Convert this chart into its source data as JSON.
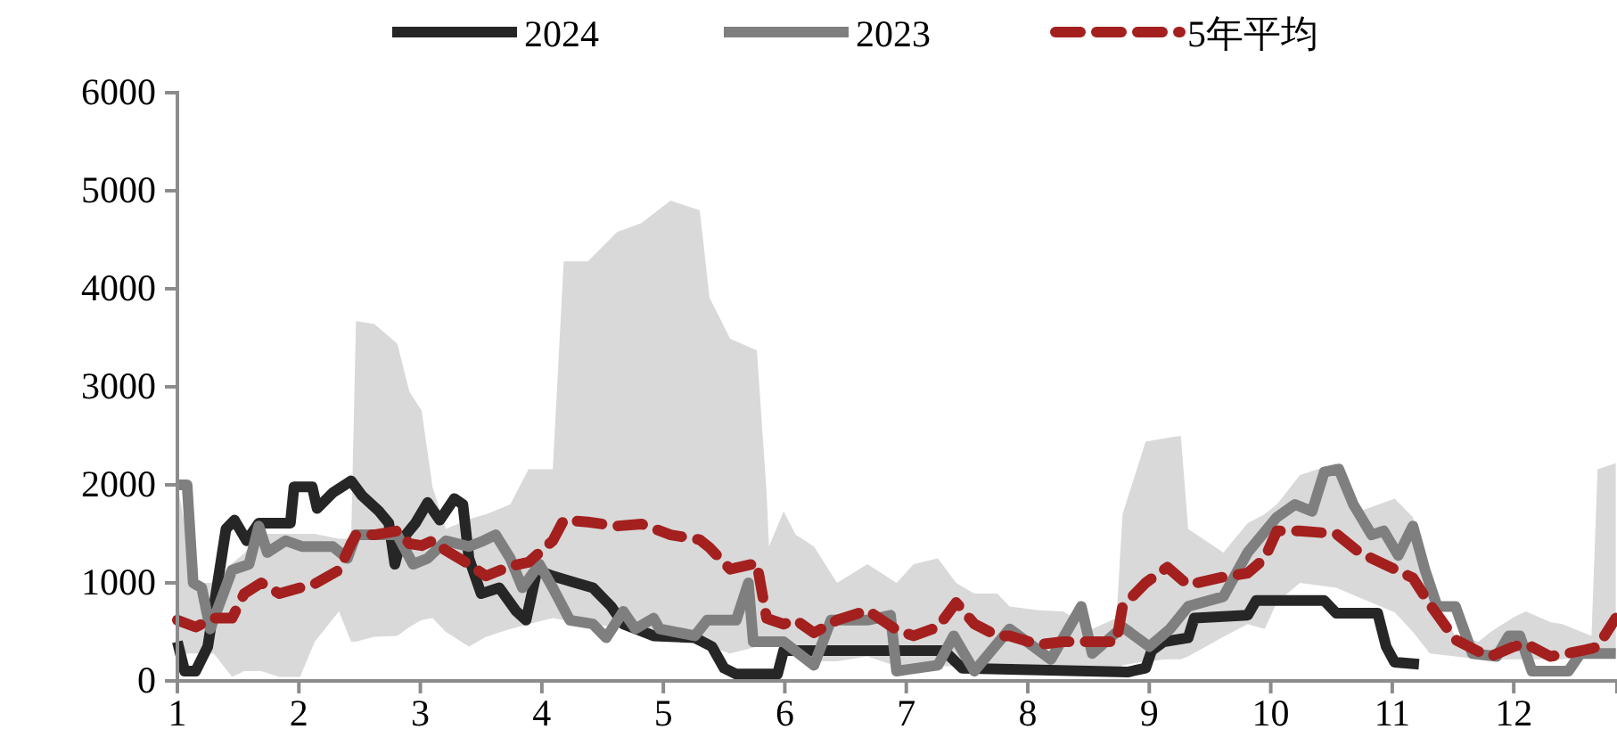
{
  "chart_data": {
    "type": "line",
    "xlim": [
      1,
      12.85
    ],
    "xticks": [
      1,
      2,
      3,
      4,
      5,
      6,
      7,
      8,
      9,
      10,
      11,
      12
    ],
    "ylim": [
      0,
      6000
    ],
    "yticks": [
      0,
      1000,
      2000,
      3000,
      4000,
      5000,
      6000
    ],
    "grid": false,
    "legend": "top",
    "series": [
      {
        "name": "5年平均",
        "color": "#a3201f",
        "line_style": "dashed",
        "x": [
          1.0,
          1.15,
          1.3,
          1.45,
          1.55,
          1.69,
          1.84,
          2.01,
          2.13,
          2.33,
          2.43,
          2.47,
          2.62,
          2.81,
          2.91,
          3.01,
          3.1,
          3.21,
          3.4,
          3.54,
          3.74,
          3.89,
          4.09,
          4.18,
          4.38,
          4.62,
          4.82,
          5.06,
          5.3,
          5.38,
          5.55,
          5.77,
          5.85,
          5.87,
          5.99,
          6.09,
          6.24,
          6.43,
          6.68,
          6.92,
          7.06,
          7.26,
          7.41,
          7.56,
          7.75,
          7.85,
          8.09,
          8.29,
          8.53,
          8.73,
          8.78,
          8.97,
          9.15,
          9.26,
          9.32,
          9.61,
          9.81,
          9.95,
          10.05,
          10.24,
          10.54,
          10.73,
          11.02,
          11.17,
          11.31,
          11.52,
          11.71,
          11.81,
          12.0,
          12.1,
          12.3,
          12.4,
          12.64,
          12.69,
          12.84
        ],
        "values": [
          620,
          550,
          640,
          640,
          890,
          1000,
          890,
          950,
          990,
          1130,
          1400,
          1490,
          1490,
          1530,
          1400,
          1380,
          1430,
          1330,
          1190,
          1070,
          1170,
          1210,
          1430,
          1640,
          1620,
          1580,
          1600,
          1490,
          1440,
          1360,
          1140,
          1200,
          640,
          630,
          580,
          620,
          490,
          620,
          720,
          520,
          460,
          550,
          800,
          580,
          460,
          460,
          370,
          400,
          400,
          400,
          760,
          1000,
          1160,
          1040,
          980,
          1060,
          1100,
          1250,
          1530,
          1530,
          1500,
          1310,
          1140,
          1050,
          780,
          420,
          300,
          250,
          350,
          380,
          250,
          270,
          330,
          350,
          640
        ],
        "lower": [
          280,
          280,
          280,
          40,
          100,
          100,
          40,
          40,
          400,
          710,
          400,
          400,
          450,
          460,
          550,
          620,
          640,
          500,
          350,
          450,
          530,
          580,
          640,
          620,
          580,
          550,
          530,
          480,
          400,
          350,
          280,
          350,
          400,
          400,
          350,
          300,
          200,
          200,
          250,
          150,
          150,
          150,
          150,
          100,
          100,
          100,
          100,
          100,
          100,
          100,
          160,
          200,
          220,
          220,
          250,
          450,
          580,
          530,
          800,
          1000,
          950,
          850,
          700,
          500,
          280,
          250,
          220,
          220,
          220,
          220,
          220,
          220,
          250,
          250,
          280
        ],
        "upper": [
          2000,
          1000,
          1000,
          1200,
          1300,
          1500,
          1500,
          1500,
          1500,
          1450,
          1450,
          3670,
          3640,
          3440,
          2950,
          2760,
          1980,
          1550,
          1650,
          1700,
          1800,
          2160,
          2160,
          4280,
          4280,
          4580,
          4670,
          4900,
          4800,
          3910,
          3490,
          3370,
          1920,
          1370,
          1730,
          1490,
          1370,
          1000,
          1190,
          1000,
          1190,
          1250,
          1000,
          890,
          890,
          760,
          720,
          710,
          530,
          640,
          1700,
          2440,
          2480,
          2500,
          1550,
          1310,
          1610,
          1700,
          1800,
          2100,
          2220,
          1730,
          1860,
          1670,
          890,
          460,
          400,
          500,
          650,
          710,
          600,
          580,
          460,
          2160,
          2220
        ]
      },
      {
        "name": "2023",
        "color": "#7f7f7f",
        "x": [
          1.0,
          1.08,
          1.13,
          1.2,
          1.27,
          1.45,
          1.59,
          1.67,
          1.74,
          1.89,
          2.03,
          2.28,
          2.4,
          2.47,
          2.81,
          2.94,
          3.06,
          3.21,
          3.4,
          3.52,
          3.62,
          3.74,
          3.84,
          3.98,
          4.09,
          4.23,
          4.42,
          4.53,
          4.67,
          4.77,
          4.92,
          4.97,
          5.26,
          5.36,
          5.6,
          5.7,
          5.74,
          5.99,
          6.24,
          6.38,
          6.68,
          6.87,
          6.92,
          7.26,
          7.39,
          7.56,
          7.85,
          8.19,
          8.44,
          8.53,
          8.78,
          9.0,
          9.17,
          9.32,
          9.61,
          9.81,
          10.05,
          10.2,
          10.34,
          10.44,
          10.56,
          10.68,
          10.83,
          10.93,
          11.05,
          11.17,
          11.27,
          11.37,
          11.52,
          11.66,
          11.86,
          11.96,
          12.05,
          12.15,
          12.45,
          12.55,
          12.84
        ],
        "values": [
          2000,
          2000,
          1000,
          950,
          530,
          1130,
          1190,
          1580,
          1310,
          1430,
          1370,
          1370,
          1250,
          1490,
          1490,
          1190,
          1250,
          1430,
          1370,
          1430,
          1490,
          1250,
          950,
          1190,
          950,
          620,
          580,
          440,
          710,
          530,
          640,
          530,
          460,
          620,
          620,
          1000,
          400,
          400,
          160,
          620,
          620,
          670,
          100,
          160,
          460,
          100,
          530,
          220,
          760,
          280,
          550,
          350,
          530,
          760,
          860,
          1310,
          1670,
          1800,
          1730,
          2130,
          2160,
          1800,
          1490,
          1530,
          1280,
          1580,
          1130,
          760,
          760,
          280,
          250,
          460,
          460,
          100,
          100,
          280,
          280
        ]
      },
      {
        "name": "2024",
        "color": "#262626",
        "x": [
          1.0,
          1.06,
          1.15,
          1.25,
          1.4,
          1.47,
          1.57,
          1.67,
          1.93,
          1.96,
          2.11,
          2.15,
          2.28,
          2.43,
          2.52,
          2.66,
          2.74,
          2.79,
          2.84,
          2.96,
          3.06,
          3.16,
          3.28,
          3.35,
          3.4,
          3.5,
          3.65,
          3.79,
          3.87,
          3.96,
          4.09,
          4.28,
          4.42,
          4.57,
          4.67,
          4.92,
          5.26,
          5.4,
          5.5,
          5.6,
          5.94,
          5.99,
          7.31,
          7.46,
          8.82,
          8.97,
          9.02,
          9.12,
          9.32,
          9.37,
          9.81,
          9.88,
          10.44,
          10.54,
          10.88,
          10.95,
          11.02,
          11.22
        ],
        "values": [
          400,
          100,
          100,
          350,
          1550,
          1640,
          1430,
          1610,
          1610,
          1980,
          1980,
          1760,
          1920,
          2040,
          1890,
          1730,
          1610,
          1190,
          1430,
          1610,
          1820,
          1640,
          1860,
          1800,
          1250,
          890,
          950,
          710,
          620,
          1130,
          1070,
          1000,
          950,
          760,
          580,
          460,
          440,
          350,
          130,
          70,
          70,
          310,
          310,
          130,
          90,
          130,
          310,
          400,
          440,
          640,
          670,
          820,
          820,
          690,
          690,
          350,
          190,
          170
        ]
      }
    ]
  }
}
